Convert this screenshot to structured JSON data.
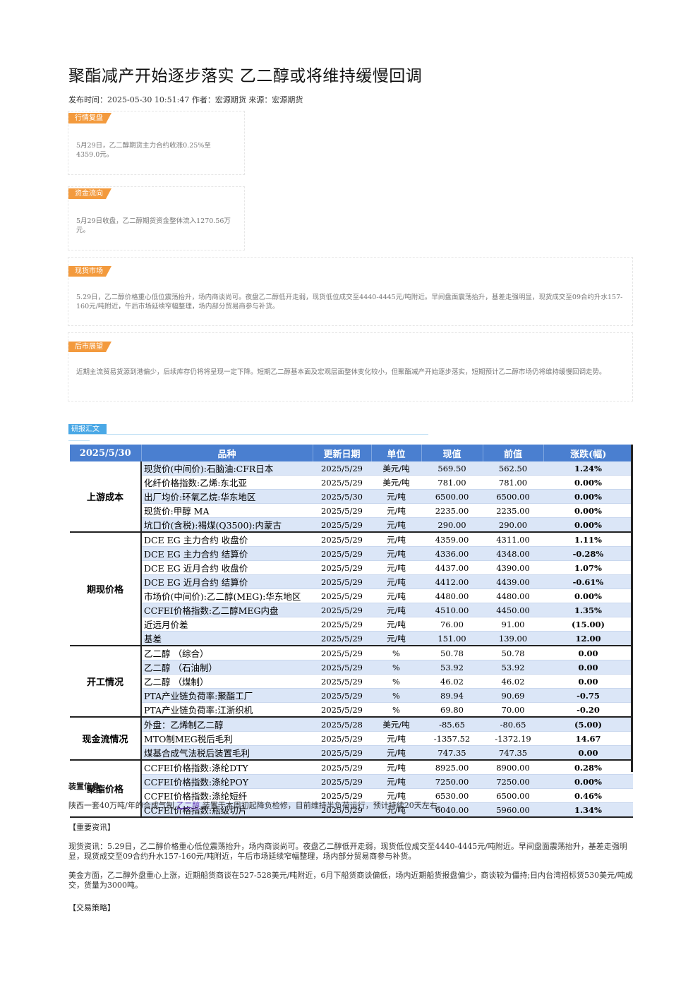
{
  "title": "聚酯减产开始逐步落实 乙二醇或将维持缓慢回调",
  "meta": "发布时间：2025-05-30 10:51:47 作者：宏源期货 来源：宏源期货",
  "cards": {
    "review": {
      "tag": "行情复盘",
      "text": "5月29日，乙二醇期货主力合约收涨0.25%至4359.0元。"
    },
    "flow": {
      "tag": "资金流向",
      "text": "5月29日收盘，乙二醇期货资金整体流入1270.56万元。"
    },
    "spot": {
      "tag": "现货市场",
      "text": "5.29日，乙二醇价格重心低位震荡抬升，场内商谈尚可。夜盘乙二醇低开走弱，现货低位成交至4440-4445元/吨附近。早间盘面震荡抬升，基差走强明显，现货成交至09合约升水157-160元/吨附近，午后市场延续窄幅整理，场内部分贸易商参与补货。"
    },
    "outlook": {
      "tag": "后市展望",
      "text": "近期主流贸易货源到港偏少，后续库存仍将将呈现一定下降。短期乙二醇基本面及宏观层面整体变化较小，但聚酯减产开始逐步落实，短期预计乙二醇市场仍将维持缓慢回调走势。"
    }
  },
  "report_tag": "研报汇文",
  "table": {
    "headers": [
      "2025/5/30",
      "品种",
      "更新日期",
      "单位",
      "现值",
      "前值",
      "涨跌(幅)"
    ],
    "groups": [
      {
        "name": "上游成本",
        "rows": [
          [
            "现货价(中间价):石脑油:CFR日本",
            "2025/5/29",
            "美元/吨",
            "569.50",
            "562.50",
            "1.24%"
          ],
          [
            "化纤价格指数:乙烯:东北亚",
            "2025/5/29",
            "美元/吨",
            "781.00",
            "781.00",
            "0.00%"
          ],
          [
            "出厂均价:环氧乙烷:华东地区",
            "2025/5/30",
            "元/吨",
            "6500.00",
            "6500.00",
            "0.00%"
          ],
          [
            "现货价:甲醇 MA",
            "2025/5/29",
            "元/吨",
            "2235.00",
            "2235.00",
            "0.00%"
          ],
          [
            "坑口价(含税):褐煤(Q3500):内蒙古",
            "2025/5/29",
            "元/吨",
            "290.00",
            "290.00",
            "0.00%"
          ]
        ]
      },
      {
        "name": "期现价格",
        "rows": [
          [
            "DCE EG 主力合约 收盘价",
            "2025/5/29",
            "元/吨",
            "4359.00",
            "4311.00",
            "1.11%"
          ],
          [
            "DCE EG 主力合约 结算价",
            "2025/5/29",
            "元/吨",
            "4336.00",
            "4348.00",
            "-0.28%"
          ],
          [
            "DCE EG 近月合约 收盘价",
            "2025/5/29",
            "元/吨",
            "4437.00",
            "4390.00",
            "1.07%"
          ],
          [
            "DCE EG 近月合约 结算价",
            "2025/5/29",
            "元/吨",
            "4412.00",
            "4439.00",
            "-0.61%"
          ],
          [
            "市场价(中间价):乙二醇(MEG):华东地区",
            "2025/5/29",
            "元/吨",
            "4480.00",
            "4480.00",
            "0.00%"
          ],
          [
            "CCFEI价格指数:乙二醇MEG内盘",
            "2025/5/29",
            "元/吨",
            "4510.00",
            "4450.00",
            "1.35%"
          ],
          [
            "近远月价差",
            "2025/5/29",
            "元/吨",
            "76.00",
            "91.00",
            "(15.00)"
          ],
          [
            "基差",
            "2025/5/29",
            "元/吨",
            "151.00",
            "139.00",
            "12.00"
          ]
        ]
      },
      {
        "name": "开工情况",
        "rows": [
          [
            "乙二醇 （综合）",
            "2025/5/29",
            "%",
            "50.78",
            "50.78",
            "0.00"
          ],
          [
            "乙二醇 （石油制）",
            "2025/5/29",
            "%",
            "53.92",
            "53.92",
            "0.00"
          ],
          [
            "乙二醇 （煤制）",
            "2025/5/29",
            "%",
            "46.02",
            "46.02",
            "0.00"
          ],
          [
            "PTA产业链负荷率:聚酯工厂",
            "2025/5/29",
            "%",
            "89.94",
            "90.69",
            "-0.75"
          ],
          [
            "PTA产业链负荷率:江浙织机",
            "2025/5/29",
            "%",
            "69.80",
            "70.00",
            "-0.20"
          ]
        ]
      },
      {
        "name": "现金流情况",
        "rows": [
          [
            "外盘：乙烯制乙二醇",
            "2025/5/28",
            "美元/吨",
            "-85.65",
            "-80.65",
            "(5.00)"
          ],
          [
            "MTO制MEG税后毛利",
            "2025/5/29",
            "元/吨",
            "-1357.52",
            "-1372.19",
            "14.67"
          ],
          [
            "煤基合成气法税后装置毛利",
            "2025/5/29",
            "元/吨",
            "747.35",
            "747.35",
            "0.00"
          ]
        ]
      },
      {
        "name": "聚酯价格",
        "rows": [
          [
            "CCFEI价格指数:涤纶DTY",
            "2025/5/29",
            "元/吨",
            "8925.00",
            "8900.00",
            "0.28%"
          ],
          [
            "CCFEI价格指数:涤纶POY",
            "2025/5/29",
            "元/吨",
            "7250.00",
            "7250.00",
            "0.00%"
          ],
          [
            "CCFEI价格指数:涤纶短纤",
            "2025/5/29",
            "元/吨",
            "6530.00",
            "6500.00",
            "0.46%"
          ],
          [
            "CCFEI价格指数:瓶级切片",
            "2025/5/29",
            "元/吨",
            "6040.00",
            "5960.00",
            "1.34%"
          ]
        ]
      }
    ]
  },
  "device": {
    "heading": "装置信息",
    "text_before": "陕西一套40万吨/年的合成气制",
    "link": "乙二醇",
    "text_after": "装置于本周初起降负检修，目前维持半负荷运行，预计持续20天左右。"
  },
  "news": {
    "heading": "【重要资讯】",
    "p1": "现货资讯：5.29日，乙二醇价格重心低位震荡抬升，场内商谈尚可。夜盘乙二醇低开走弱，现货低位成交至4440-4445元/吨附近。早间盘面震荡抬升，基差走强明显，现货成交至09合约升水157-160元/吨附近，午后市场延续窄幅整理，场内部分贸易商参与补货。",
    "p2": "美金方面，乙二醇外盘重心上涨，近期船货商谈在527-528美元/吨附近，6月下船货商谈偏低，场内近期船货报盘偏少，商谈较为僵持;日内台湾招标货530美元/吨成交，货量为3000吨。"
  },
  "strategy": {
    "heading": "【交易策略】"
  },
  "colors": {
    "tag_orange": "#f39a3d",
    "tag_blue": "#4aa8e6",
    "header_blue": "#4a7fd0",
    "row_alt": "#dbe6f7",
    "up": "#e02020",
    "down": "#1a9a1a"
  }
}
